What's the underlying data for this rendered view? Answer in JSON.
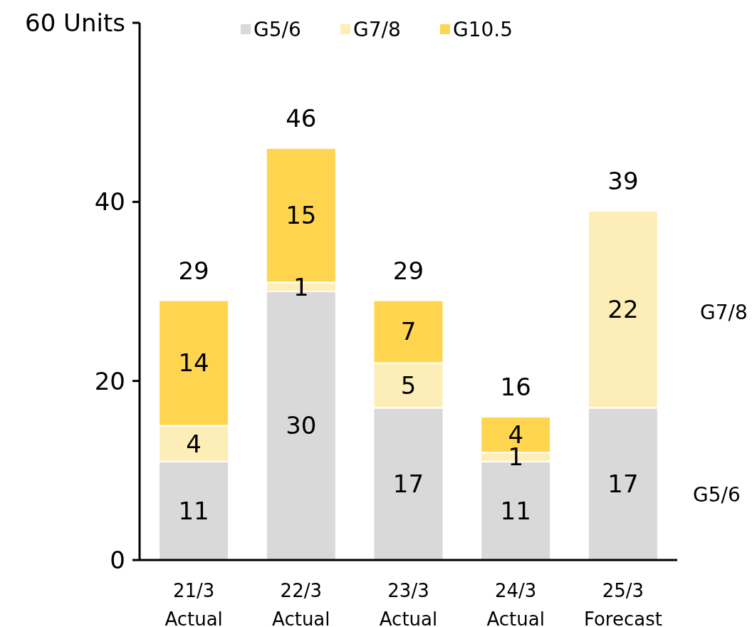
{
  "chart_data": {
    "type": "bar",
    "stacked": true,
    "categories": [
      "21/3\nActual",
      "22/3\nActual",
      "23/3\nActual",
      "24/3\nActual",
      "25/3\nForecast"
    ],
    "series": [
      {
        "name": "G5/6",
        "color": "#d9d9d9",
        "values": [
          11,
          30,
          17,
          11,
          17
        ]
      },
      {
        "name": "G7/8",
        "color": "#fdeeb8",
        "values": [
          4,
          1,
          5,
          1,
          22
        ]
      },
      {
        "name": "G10.5",
        "color": "#ffd54f",
        "values": [
          14,
          15,
          7,
          4,
          null
        ]
      }
    ],
    "ylim": [
      0,
      60
    ],
    "yticks": [
      0,
      20,
      40,
      {
        "value": 60,
        "label": "60 Units"
      }
    ],
    "data_labels": true,
    "totals": [
      "29",
      "46",
      "29",
      "16",
      "39"
    ],
    "legend": "top",
    "grid": false,
    "annotations": [
      "G7/8",
      "G5/6"
    ]
  }
}
